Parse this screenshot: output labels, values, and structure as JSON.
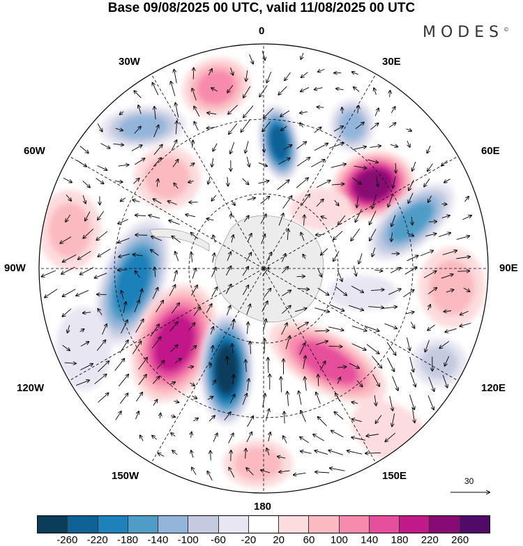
{
  "title": "Base 09/08/2025 00 UTC, valid 11/08/2025 00 UTC",
  "logo": {
    "text": "MODES",
    "mark": "©"
  },
  "longitude_labels": {
    "top": "0",
    "bottom": "180",
    "left": "90W",
    "right": "90E",
    "w30": "30W",
    "e30": "30E",
    "w60": "60W",
    "e60": "60E",
    "w120": "120W",
    "e120": "120E",
    "w150": "150W",
    "e150": "150E"
  },
  "vector_reference": "30",
  "colorbar": {
    "colors": [
      "#0b3d5b",
      "#0f6296",
      "#1f81ba",
      "#4f9dc7",
      "#93b5da",
      "#c4cbe1",
      "#e7e6f2",
      "#ffffff",
      "#fddcdd",
      "#fbb9c0",
      "#f78bae",
      "#e64f9c",
      "#c2198a",
      "#870b73",
      "#4f0b67"
    ],
    "labels": [
      "-260",
      "-220",
      "-180",
      "-140",
      "-100",
      "-60",
      "-20",
      "20",
      "60",
      "100",
      "140",
      "180",
      "220",
      "260"
    ]
  }
}
